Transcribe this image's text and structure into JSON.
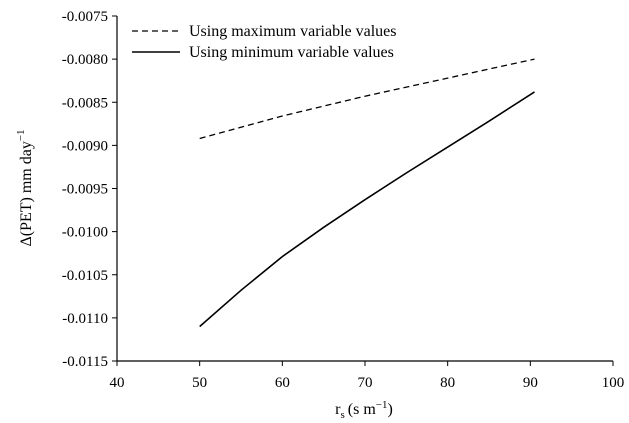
{
  "chart_data": {
    "type": "line",
    "xlabel": "r",
    "xlabel_sub": "s",
    "xlabel_units": "(s m",
    "xlabel_sup": "−1",
    "xlabel_close": ")",
    "ylabel": "Δ(PET) mm day",
    "ylabel_sup": "−1",
    "xlim": [
      40,
      100
    ],
    "ylim": [
      -0.0115,
      -0.0075
    ],
    "x_ticks": [
      40,
      50,
      60,
      70,
      80,
      90,
      100
    ],
    "x_tick_labels": [
      "40",
      "50",
      "60",
      "70",
      "80",
      "90",
      "100"
    ],
    "y_ticks": [
      -0.0075,
      -0.008,
      -0.0085,
      -0.009,
      -0.0095,
      -0.01,
      -0.0105,
      -0.011,
      -0.0115
    ],
    "y_tick_labels": [
      "-0.0075",
      "-0.0080",
      "-0.0085",
      "-0.0090",
      "-0.0095",
      "-0.0100",
      "-0.0105",
      "-0.0110",
      "-0.0115"
    ],
    "grid": false,
    "legend_position": "top-left",
    "series": [
      {
        "name": "Using maximum variable values",
        "style": "dashed",
        "color": "#000000",
        "x": [
          50,
          60,
          70,
          80,
          90.5
        ],
        "y": [
          -0.00892,
          -0.00866,
          -0.00843,
          -0.00822,
          -0.008
        ]
      },
      {
        "name": "Using minimum variable values",
        "style": "solid",
        "color": "#000000",
        "x": [
          50,
          55,
          60,
          65,
          70,
          75,
          80,
          85,
          90.5
        ],
        "y": [
          -0.0111,
          -0.01068,
          -0.01029,
          -0.00995,
          -0.00963,
          -0.00932,
          -0.00902,
          -0.00872,
          -0.00838
        ]
      }
    ]
  }
}
